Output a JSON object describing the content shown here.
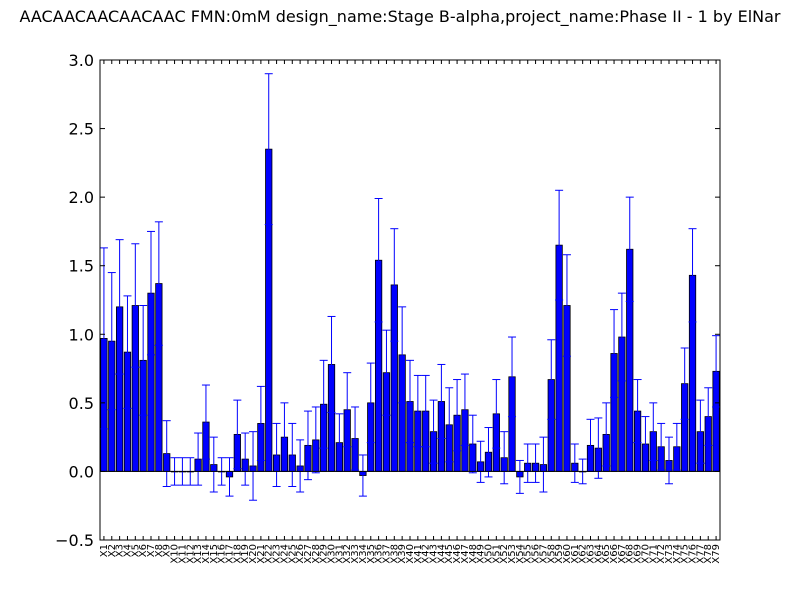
{
  "chart_data": {
    "type": "bar",
    "title": "AACAACAACAACAAC  FMN:0mM  design_name:Stage B-alpha,project_name:Phase II - 1 by ElNar",
    "xlabel": "",
    "ylabel": "",
    "ylim": [
      -0.5,
      3.0
    ],
    "yticks": [
      "−0.5",
      "0.0",
      "0.5",
      "1.0",
      "1.5",
      "2.0",
      "2.5",
      "3.0"
    ],
    "ytick_values": [
      -0.5,
      0.0,
      0.5,
      1.0,
      1.5,
      2.0,
      2.5,
      3.0
    ],
    "bar_color": "#0000ff",
    "error_color": "#0000ff",
    "grid": false,
    "categories": [
      "X1",
      "X2",
      "X3",
      "X4",
      "X5",
      "X6",
      "X7",
      "X8",
      "X9",
      "X10",
      "X11",
      "X12",
      "X13",
      "X14",
      "X15",
      "X16",
      "X17",
      "X18",
      "X19",
      "X20",
      "X21",
      "X22",
      "X23",
      "X24",
      "X25",
      "X26",
      "X27",
      "X28",
      "X29",
      "X30",
      "X31",
      "X32",
      "X33",
      "X34",
      "X35",
      "X36",
      "X37",
      "X38",
      "X39",
      "X40",
      "X41",
      "X42",
      "X43",
      "X44",
      "X45",
      "X46",
      "X47",
      "X48",
      "X49",
      "X50",
      "X51",
      "X52",
      "X53",
      "X54",
      "X55",
      "X56",
      "X57",
      "X58",
      "X59",
      "X60",
      "X61",
      "X62",
      "X63",
      "X64",
      "X65",
      "X66",
      "X67",
      "X68",
      "X69",
      "X70",
      "X71",
      "X72",
      "X73",
      "X74",
      "X75",
      "X76",
      "X77",
      "X78",
      "X79"
    ],
    "values": [
      0.97,
      0.95,
      1.2,
      0.87,
      1.21,
      0.81,
      1.3,
      1.37,
      0.13,
      0.0,
      0.0,
      0.0,
      0.09,
      0.36,
      0.05,
      0.0,
      -0.04,
      0.27,
      0.09,
      0.04,
      0.35,
      2.35,
      0.12,
      0.25,
      0.12,
      0.04,
      0.19,
      0.23,
      0.49,
      0.78,
      0.21,
      0.45,
      0.24,
      -0.03,
      0.5,
      1.54,
      0.72,
      1.36,
      0.85,
      0.51,
      0.44,
      0.44,
      0.29,
      0.51,
      0.34,
      0.41,
      0.45,
      0.2,
      0.07,
      0.14,
      0.42,
      0.1,
      0.69,
      -0.04,
      0.06,
      0.06,
      0.05,
      0.67,
      1.65,
      1.21,
      0.06,
      0.0,
      0.19,
      0.17,
      0.27,
      0.86,
      0.98,
      1.62,
      0.44,
      0.2,
      0.29,
      0.18,
      0.08,
      0.18,
      0.64,
      1.43,
      0.29,
      0.4,
      0.73
    ],
    "errors": [
      0.66,
      0.5,
      0.49,
      0.41,
      0.45,
      0.4,
      0.45,
      0.45,
      0.24,
      0.1,
      0.1,
      0.1,
      0.19,
      0.27,
      0.2,
      0.1,
      0.14,
      0.25,
      0.19,
      0.25,
      0.27,
      0.55,
      0.23,
      0.25,
      0.23,
      0.19,
      0.25,
      0.24,
      0.32,
      0.35,
      0.21,
      0.27,
      0.23,
      0.15,
      0.29,
      0.45,
      0.31,
      0.41,
      0.35,
      0.3,
      0.26,
      0.26,
      0.23,
      0.27,
      0.27,
      0.26,
      0.26,
      0.21,
      0.15,
      0.18,
      0.25,
      0.19,
      0.29,
      0.12,
      0.14,
      0.14,
      0.2,
      0.29,
      0.4,
      0.37,
      0.14,
      0.09,
      0.19,
      0.22,
      0.23,
      0.32,
      0.32,
      0.38,
      0.23,
      0.2,
      0.21,
      0.17,
      0.17,
      0.17,
      0.26,
      0.34,
      0.23,
      0.21,
      0.26
    ]
  }
}
